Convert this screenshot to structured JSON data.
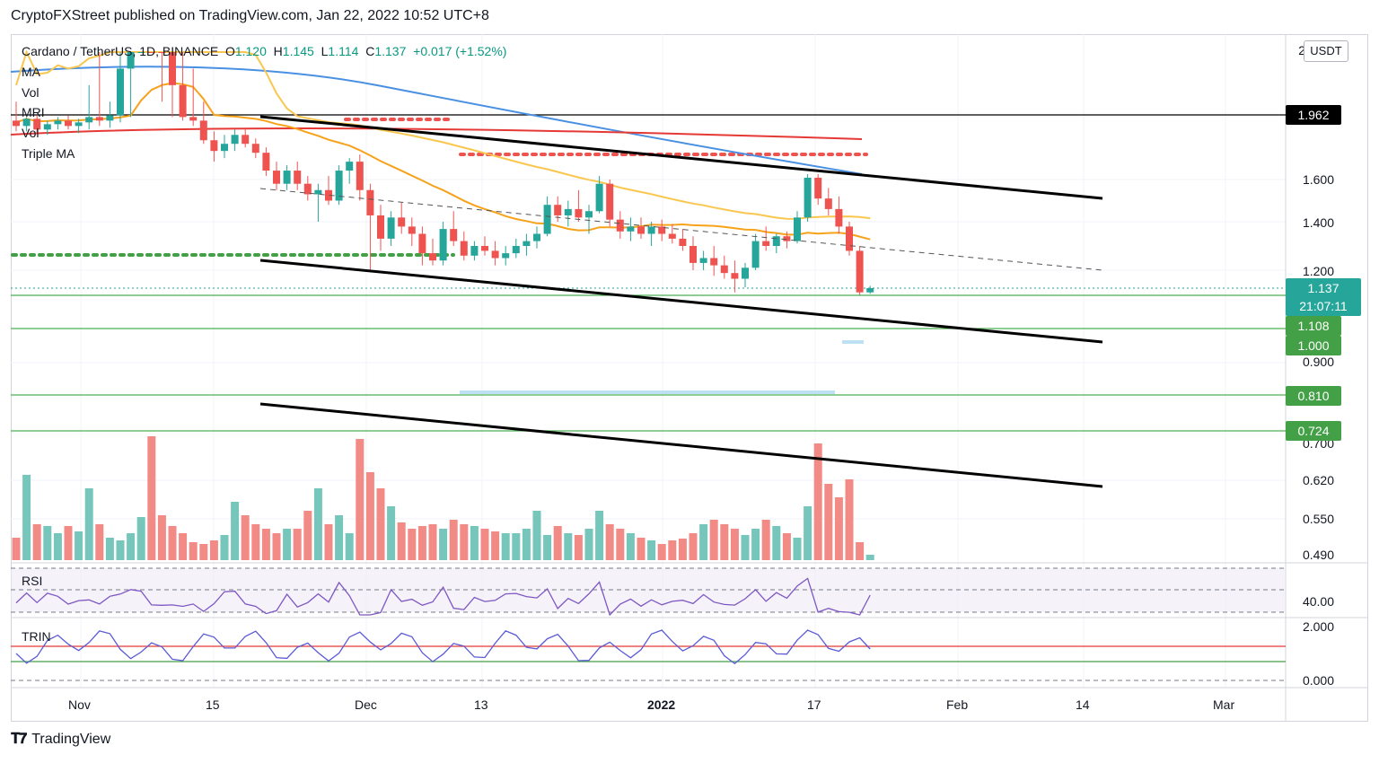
{
  "header": {
    "publisher": "CryptoFXStreet published on TradingView.com, Jan 22, 2022 10:52 UTC+8"
  },
  "legend": {
    "symbol": "Cardano / TetherUS, 1D, BINANCE",
    "open_label": "O",
    "open": "1.120",
    "high_label": "H",
    "high": "1.145",
    "low_label": "L",
    "low": "1.114",
    "close_label": "C",
    "close": "1.137",
    "change": "+0.017 (+1.52%)",
    "indicators": [
      "MA",
      "Vol",
      "MRI",
      "Vol",
      "Triple MA"
    ]
  },
  "panes": {
    "rsi_label": "RSI",
    "trin_label": "TRIN"
  },
  "price_axis": {
    "currency": "USDT",
    "top_tick": "2",
    "ticks": [
      "1.600",
      "1.400",
      "1.200",
      "0.900",
      "0.700",
      "0.620",
      "0.550",
      "0.490"
    ],
    "rsi_tick": "40.00",
    "trin_ticks": [
      "2.000",
      "0.000"
    ]
  },
  "tags": {
    "resistance": "1.962",
    "last_price": "1.137",
    "countdown": "21:07:11",
    "support1": "1.108",
    "support2": "1.000",
    "support3": "0.810",
    "support4": "0.724"
  },
  "time_axis": [
    "Nov",
    "15",
    "Dec",
    "13",
    "2022",
    "17",
    "Feb",
    "14",
    "Mar"
  ],
  "footer": {
    "brand": "TradingView"
  },
  "colors": {
    "up": "#26a69a",
    "down": "#ef5350",
    "ma_blue": "#4a90e2",
    "ma_orange": "#f7a21b",
    "ma_red": "#e53935",
    "support_green": "#4caf50",
    "trendline": "#000000",
    "rsi_line": "#7e57c2",
    "trin_line": "#5b5bd6"
  },
  "chart_data": {
    "type": "candlestick",
    "symbol": "Cardano / TetherUS",
    "timeframe": "1D",
    "exchange": "BINANCE",
    "x_tick_labels": [
      "Nov",
      "15",
      "Dec",
      "13",
      "2022",
      "17",
      "Feb",
      "14",
      "Mar"
    ],
    "y_tick_labels": [
      "1.600",
      "1.400",
      "1.200",
      "0.900",
      "0.700",
      "0.620",
      "0.550",
      "0.490"
    ],
    "candles_ohlc": [
      [
        1.93,
        1.97,
        1.87,
        1.9
      ],
      [
        1.9,
        1.95,
        1.87,
        1.94
      ],
      [
        1.94,
        1.96,
        1.86,
        1.88
      ],
      [
        1.88,
        1.93,
        1.85,
        1.91
      ],
      [
        1.91,
        1.95,
        1.88,
        1.93
      ],
      [
        1.93,
        1.96,
        1.88,
        1.9
      ],
      [
        1.9,
        1.94,
        1.86,
        1.92
      ],
      [
        1.92,
        1.98,
        1.88,
        1.95
      ],
      [
        1.95,
        2.0,
        1.9,
        1.93
      ],
      [
        1.93,
        1.97,
        1.89,
        1.96
      ],
      [
        1.96,
        2.03,
        1.92,
        1.99
      ],
      [
        1.99,
        2.1,
        1.95,
        2.05
      ],
      [
        2.05,
        2.15,
        2.0,
        2.1
      ],
      [
        2.1,
        2.17,
        2.02,
        2.04
      ],
      [
        2.04,
        2.08,
        1.97,
        2.0
      ],
      [
        2.0,
        2.05,
        1.95,
        1.98
      ],
      [
        1.98,
        2.02,
        1.93,
        1.95
      ],
      [
        1.95,
        1.99,
        1.9,
        1.93
      ],
      [
        1.93,
        1.97,
        1.8,
        1.82
      ],
      [
        1.82,
        1.87,
        1.7,
        1.76
      ],
      [
        1.76,
        1.85,
        1.72,
        1.8
      ],
      [
        1.8,
        1.88,
        1.76,
        1.85
      ],
      [
        1.85,
        1.88,
        1.78,
        1.8
      ],
      [
        1.8,
        1.83,
        1.72,
        1.75
      ],
      [
        1.75,
        1.78,
        1.62,
        1.65
      ],
      [
        1.65,
        1.7,
        1.55,
        1.58
      ],
      [
        1.58,
        1.68,
        1.55,
        1.65
      ],
      [
        1.65,
        1.7,
        1.55,
        1.58
      ],
      [
        1.58,
        1.62,
        1.5,
        1.53
      ],
      [
        1.53,
        1.58,
        1.4,
        1.55
      ],
      [
        1.55,
        1.62,
        1.48,
        1.5
      ],
      [
        1.5,
        1.68,
        1.48,
        1.65
      ],
      [
        1.65,
        1.72,
        1.58,
        1.7
      ],
      [
        1.7,
        1.74,
        1.5,
        1.55
      ],
      [
        1.55,
        1.58,
        1.2,
        1.43
      ],
      [
        1.43,
        1.48,
        1.28,
        1.33
      ],
      [
        1.33,
        1.45,
        1.3,
        1.42
      ],
      [
        1.42,
        1.49,
        1.35,
        1.38
      ],
      [
        1.38,
        1.42,
        1.3,
        1.35
      ],
      [
        1.35,
        1.38,
        1.22,
        1.27
      ],
      [
        1.27,
        1.33,
        1.22,
        1.24
      ],
      [
        1.24,
        1.4,
        1.22,
        1.37
      ],
      [
        1.37,
        1.45,
        1.3,
        1.32
      ],
      [
        1.32,
        1.36,
        1.24,
        1.26
      ],
      [
        1.26,
        1.32,
        1.24,
        1.3
      ],
      [
        1.3,
        1.34,
        1.26,
        1.28
      ],
      [
        1.28,
        1.32,
        1.22,
        1.25
      ],
      [
        1.25,
        1.3,
        1.22,
        1.27
      ],
      [
        1.27,
        1.33,
        1.25,
        1.3
      ],
      [
        1.3,
        1.35,
        1.26,
        1.32
      ],
      [
        1.32,
        1.38,
        1.29,
        1.35
      ],
      [
        1.35,
        1.52,
        1.34,
        1.48
      ],
      [
        1.48,
        1.52,
        1.4,
        1.43
      ],
      [
        1.43,
        1.5,
        1.38,
        1.46
      ],
      [
        1.46,
        1.55,
        1.4,
        1.42
      ],
      [
        1.42,
        1.48,
        1.35,
        1.45
      ],
      [
        1.45,
        1.62,
        1.44,
        1.58
      ],
      [
        1.58,
        1.6,
        1.38,
        1.41
      ],
      [
        1.41,
        1.45,
        1.33,
        1.36
      ],
      [
        1.36,
        1.42,
        1.32,
        1.38
      ],
      [
        1.38,
        1.42,
        1.33,
        1.35
      ],
      [
        1.35,
        1.4,
        1.3,
        1.38
      ],
      [
        1.38,
        1.41,
        1.32,
        1.35
      ],
      [
        1.35,
        1.39,
        1.31,
        1.33
      ],
      [
        1.33,
        1.37,
        1.28,
        1.3
      ],
      [
        1.3,
        1.34,
        1.2,
        1.23
      ],
      [
        1.23,
        1.28,
        1.2,
        1.25
      ],
      [
        1.25,
        1.3,
        1.18,
        1.22
      ],
      [
        1.22,
        1.26,
        1.17,
        1.19
      ],
      [
        1.19,
        1.24,
        1.12,
        1.17
      ],
      [
        1.17,
        1.23,
        1.14,
        1.21
      ],
      [
        1.21,
        1.35,
        1.2,
        1.32
      ],
      [
        1.32,
        1.38,
        1.28,
        1.3
      ],
      [
        1.3,
        1.35,
        1.27,
        1.34
      ],
      [
        1.34,
        1.36,
        1.29,
        1.32
      ],
      [
        1.32,
        1.45,
        1.31,
        1.42
      ],
      [
        1.42,
        1.63,
        1.4,
        1.61
      ],
      [
        1.61,
        1.63,
        1.48,
        1.51
      ],
      [
        1.51,
        1.56,
        1.43,
        1.46
      ],
      [
        1.46,
        1.52,
        1.35,
        1.38
      ],
      [
        1.38,
        1.4,
        1.26,
        1.28
      ],
      [
        1.28,
        1.3,
        1.11,
        1.12
      ],
      [
        1.12,
        1.145,
        1.114,
        1.137
      ]
    ],
    "horizontal_levels": [
      1.962,
      1.108,
      1.0,
      0.81,
      0.724
    ],
    "ma_series": [
      "MA blue",
      "MA orange",
      "MA red"
    ],
    "volume_panel": true,
    "rsi_panel": {
      "label": "RSI",
      "level": 40.0
    },
    "trin_panel": {
      "label": "TRIN",
      "range": [
        0.0,
        2.0
      ]
    }
  }
}
